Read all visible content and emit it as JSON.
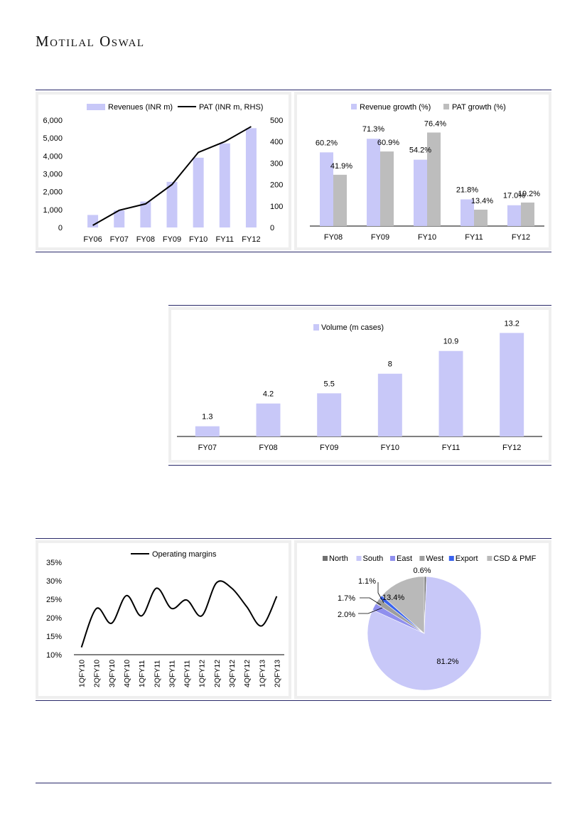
{
  "brand": {
    "name": "Motilal Oswal"
  },
  "colors": {
    "bar": "#c8c8f8",
    "gray": "#bdbdbd",
    "line": "#000000",
    "rule": "#2a2a6a",
    "pie": [
      "#707070",
      "#c8c8f8",
      "#8f8fee",
      "#9e9e9e",
      "#3a63ee",
      "#b9b9b9"
    ]
  },
  "chart_data": [
    {
      "id": "revenue_pat",
      "type": "bar",
      "categories": [
        "FY06",
        "FY07",
        "FY08",
        "FY09",
        "FY10",
        "FY11",
        "FY12"
      ],
      "series": [
        {
          "name": "Revenues (INR m)",
          "type": "bar",
          "axis": "left",
          "values": [
            700,
            950,
            1450,
            2550,
            3900,
            4700,
            5550
          ]
        },
        {
          "name": "PAT (INR m, RHS)",
          "type": "line",
          "axis": "right",
          "values": [
            10,
            80,
            110,
            200,
            350,
            400,
            470
          ]
        }
      ],
      "ylim": [
        0,
        6000
      ],
      "yticks": [
        "6,000",
        "5,000",
        "4,000",
        "3,000",
        "2,000",
        "1,000",
        "0"
      ],
      "y2lim": [
        0,
        500
      ],
      "y2ticks": [
        "500",
        "400",
        "300",
        "200",
        "100",
        "0"
      ]
    },
    {
      "id": "growth",
      "type": "bar",
      "categories": [
        "FY08",
        "FY09",
        "FY10",
        "FY11",
        "FY12"
      ],
      "series": [
        {
          "name": "Revenue growth (%)",
          "values": [
            60.2,
            71.3,
            54.2,
            21.8,
            17.0
          ],
          "labels": [
            "60.2%",
            "71.3%",
            "54.2%",
            "21.8%",
            "17.0%"
          ]
        },
        {
          "name": "PAT growth (%)",
          "values": [
            41.9,
            60.9,
            76.4,
            13.4,
            19.2
          ],
          "labels": [
            "41.9%",
            "60.9%",
            "76.4%",
            "13.4%",
            "19.2%"
          ]
        }
      ],
      "ylim": [
        0,
        90
      ]
    },
    {
      "id": "volume",
      "type": "bar",
      "categories": [
        "FY07",
        "FY08",
        "FY09",
        "FY10",
        "FY11",
        "FY12"
      ],
      "series": [
        {
          "name": "Volume (m cases)",
          "values": [
            1.3,
            4.2,
            5.5,
            8,
            10.9,
            13.2
          ],
          "labels": [
            "1.3",
            "4.2",
            "5.5",
            "8",
            "10.9",
            "13.2"
          ]
        }
      ],
      "ylim": [
        0,
        14.5
      ]
    },
    {
      "id": "margins",
      "type": "line",
      "categories": [
        "1QFY10",
        "2QFY10",
        "3QFY10",
        "4QFY10",
        "1QFY11",
        "2QFY11",
        "3QFY11",
        "4QFY11",
        "1QFY12",
        "2QFY12",
        "3QFY12",
        "4QFY12",
        "1QFY13",
        "2QFY13"
      ],
      "series": [
        {
          "name": "Operating margins",
          "values": [
            12.0,
            22.5,
            18.5,
            26.0,
            20.5,
            28.0,
            22.5,
            24.8,
            20.5,
            29.5,
            28.0,
            23.0,
            17.8,
            25.8
          ]
        }
      ],
      "ylim": [
        10,
        35
      ],
      "yticks": [
        "35%",
        "30%",
        "25%",
        "20%",
        "15%",
        "10%"
      ]
    },
    {
      "id": "mix",
      "type": "pie",
      "categories": [
        "North",
        "South",
        "East",
        "West",
        "Export",
        "CSD & PMF"
      ],
      "values": [
        0.6,
        81.2,
        2.0,
        1.7,
        1.1,
        13.4
      ],
      "labels": [
        "0.6%",
        "81.2%",
        "2.0%",
        "1.7%",
        "1.1%",
        "13.4%"
      ]
    }
  ]
}
